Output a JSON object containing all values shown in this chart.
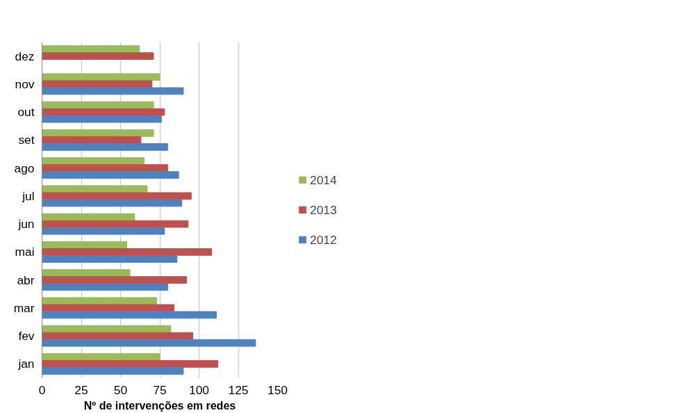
{
  "chart_data": {
    "type": "bar",
    "orientation": "horizontal",
    "xlabel": "Nº de intervenções em redes",
    "categories": [
      "dez",
      "nov",
      "out",
      "set",
      "ago",
      "jul",
      "jun",
      "mai",
      "abr",
      "mar",
      "fev",
      "jan"
    ],
    "series": [
      {
        "name": "2014",
        "color": "#9bbb59",
        "values": [
          62,
          75,
          71,
          71,
          65,
          67,
          59,
          54,
          56,
          73,
          82,
          75
        ]
      },
      {
        "name": "2013",
        "color": "#c0504d",
        "values": [
          71,
          70,
          78,
          63,
          80,
          95,
          93,
          108,
          92,
          84,
          96,
          112
        ]
      },
      {
        "name": "2012",
        "color": "#4f81bd",
        "values": [
          null,
          90,
          76,
          80,
          87,
          89,
          78,
          86,
          80,
          111,
          136,
          90
        ]
      }
    ],
    "xlim": [
      0,
      150
    ],
    "xticks": [
      0,
      25,
      50,
      75,
      100,
      125,
      150
    ],
    "grid": "x",
    "legend": "right"
  }
}
